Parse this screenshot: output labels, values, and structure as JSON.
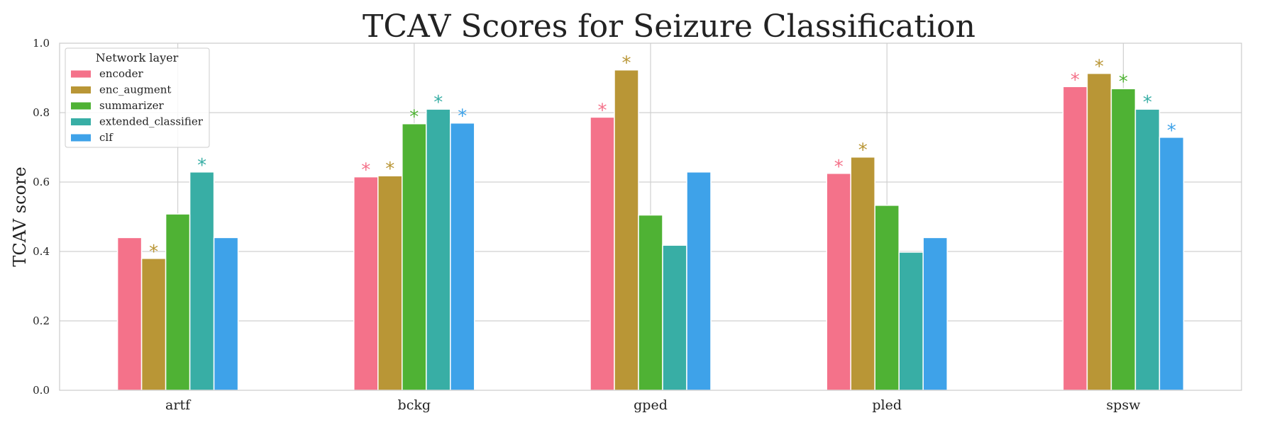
{
  "chart_data": {
    "type": "bar",
    "title": "TCAV Scores for Seizure Classification",
    "xlabel": "",
    "ylabel": "TCAV score",
    "ylim": [
      0,
      1
    ],
    "yticks": [
      "0.0",
      "0.2",
      "0.4",
      "0.6",
      "0.8",
      "1.0"
    ],
    "categories": [
      "artf",
      "bckg",
      "gped",
      "pled",
      "spsw"
    ],
    "grid": true,
    "legend": {
      "title": "Network layer",
      "position": "top-left"
    },
    "significance_marker": "*",
    "series": [
      {
        "name": "encoder",
        "color": "#f4728a",
        "values": [
          0.44,
          0.615,
          0.787,
          0.625,
          0.875
        ],
        "significant": [
          false,
          true,
          true,
          true,
          true
        ]
      },
      {
        "name": "enc_augment",
        "color": "#b99636",
        "values": [
          0.38,
          0.618,
          0.923,
          0.672,
          0.913
        ],
        "significant": [
          true,
          true,
          true,
          true,
          true
        ]
      },
      {
        "name": "summarizer",
        "color": "#4fb234",
        "values": [
          0.508,
          0.768,
          0.505,
          0.533,
          0.869
        ],
        "significant": [
          false,
          true,
          false,
          false,
          true
        ]
      },
      {
        "name": "extended_classifier",
        "color": "#38aea5",
        "values": [
          0.629,
          0.81,
          0.418,
          0.398,
          0.81
        ],
        "significant": [
          true,
          true,
          false,
          false,
          true
        ]
      },
      {
        "name": "clf",
        "color": "#3ea2e9",
        "values": [
          0.44,
          0.77,
          0.629,
          0.44,
          0.729
        ],
        "significant": [
          false,
          true,
          false,
          false,
          true
        ]
      }
    ]
  }
}
